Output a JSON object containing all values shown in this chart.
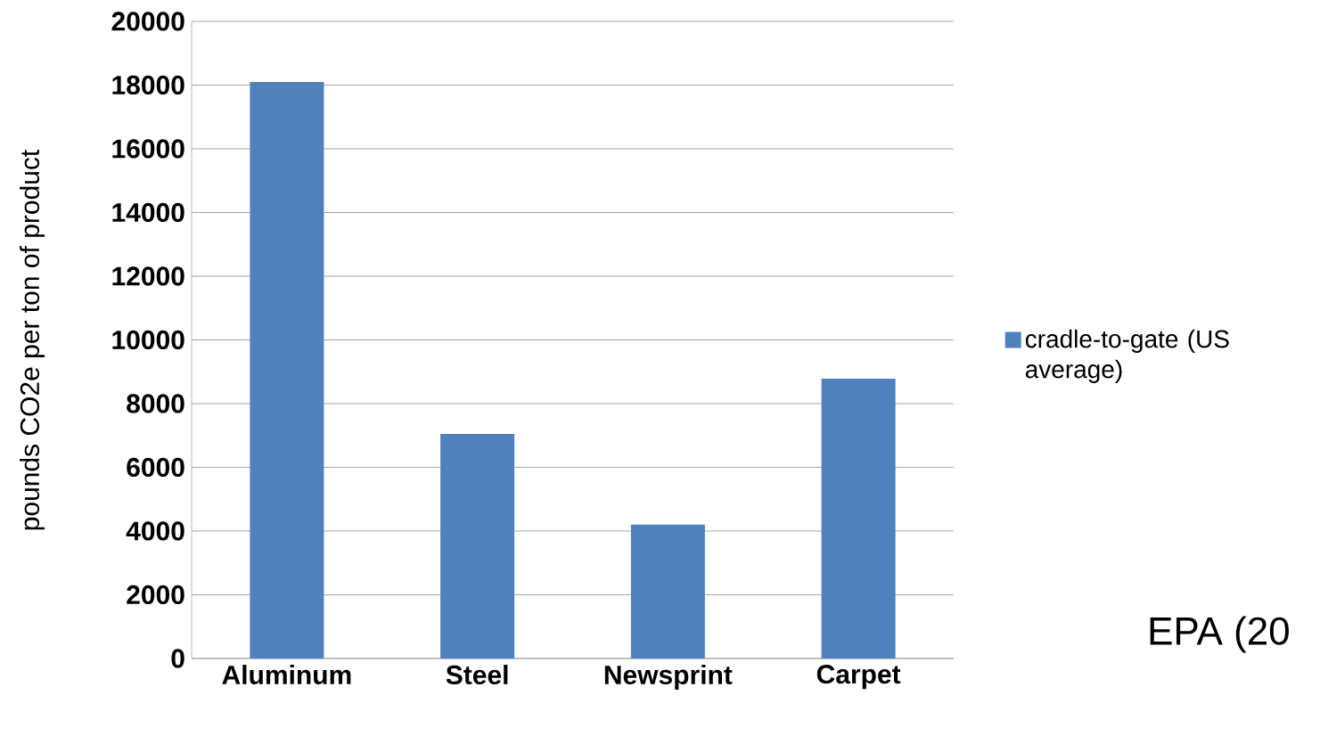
{
  "chart_data": {
    "type": "bar",
    "ylabel": "pounds CO2e per ton of product",
    "categories": [
      "Aluminum",
      "Steel",
      "Newsprint",
      "Carpet"
    ],
    "series": [
      {
        "name": "cradle-to-gate (US average)",
        "color": "#4f81bd",
        "values": [
          18100,
          7050,
          4200,
          8780
        ]
      }
    ],
    "ylim": [
      0,
      20000
    ],
    "yticks": [
      0,
      2000,
      4000,
      6000,
      8000,
      10000,
      12000,
      14000,
      16000,
      18000,
      20000
    ],
    "grid": "y",
    "legend": "right",
    "annotations": [
      "EPA (20"
    ]
  }
}
